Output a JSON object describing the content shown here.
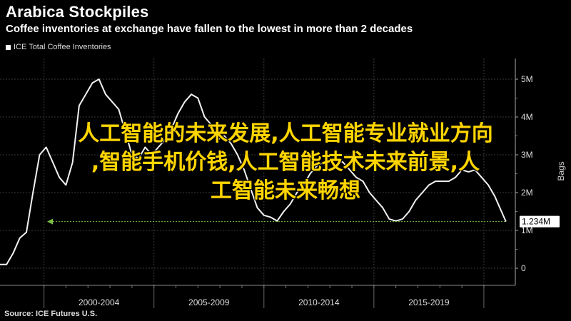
{
  "header": {
    "title": "Arabica Stockpiles",
    "subtitle": "Coffee inventories at exchange have fallen to the lowest in more than 2 decades"
  },
  "source": "Source: ICE Futures U.S.",
  "overlay": {
    "lines": [
      "人工智能的未来发展,人工智能专业就业方向",
      ",智能手机价钱,人工智能技术未来前景,人",
      "工智能未来畅想"
    ]
  },
  "chart_data": {
    "type": "line",
    "title": "Arabica Stockpiles",
    "subtitle": "Coffee inventories at exchange have fallen to the lowest in more than 2 decades",
    "ylabel": "Bags",
    "legend": "top-left",
    "grid": true,
    "ylim": [
      0,
      5.3
    ],
    "xlim": [
      1998.0,
      2021.3
    ],
    "y_ticks": [
      0,
      1,
      2,
      3,
      4,
      5
    ],
    "y_tick_labels": [
      "0",
      "1M",
      "2M",
      "3M",
      "4M",
      "5M"
    ],
    "x_periods": [
      {
        "label": "2000-2004",
        "start": 2000,
        "end": 2005
      },
      {
        "label": "2005-2009",
        "start": 2005,
        "end": 2010
      },
      {
        "label": "2010-2014",
        "start": 2010,
        "end": 2015
      },
      {
        "label": "2015-2019",
        "start": 2015,
        "end": 2020
      }
    ],
    "last_value_label": "1.234M",
    "last_value": 1.234,
    "series": [
      {
        "name": "ICE Total Coffee Inventories",
        "x": [
          1998.0,
          1998.3,
          1998.6,
          1998.9,
          1999.2,
          1999.5,
          1999.8,
          2000.1,
          2000.4,
          2000.7,
          2001.0,
          2001.3,
          2001.6,
          2001.9,
          2002.2,
          2002.5,
          2002.8,
          2003.1,
          2003.4,
          2003.7,
          2004.0,
          2004.3,
          2004.6,
          2004.9,
          2005.2,
          2005.5,
          2005.8,
          2006.1,
          2006.4,
          2006.7,
          2007.0,
          2007.3,
          2007.6,
          2007.9,
          2008.2,
          2008.5,
          2008.8,
          2009.1,
          2009.4,
          2009.7,
          2010.0,
          2010.3,
          2010.6,
          2010.9,
          2011.2,
          2011.5,
          2011.8,
          2012.1,
          2012.4,
          2012.7,
          2013.0,
          2013.3,
          2013.6,
          2013.9,
          2014.2,
          2014.5,
          2014.8,
          2015.1,
          2015.4,
          2015.7,
          2016.0,
          2016.3,
          2016.6,
          2016.9,
          2017.2,
          2017.5,
          2017.8,
          2018.1,
          2018.4,
          2018.7,
          2019.0,
          2019.3,
          2019.6,
          2019.9,
          2020.2,
          2020.5,
          2020.8,
          2021.0
        ],
        "values": [
          0.1,
          0.1,
          0.4,
          0.8,
          0.95,
          2.0,
          3.0,
          3.2,
          2.8,
          2.4,
          2.2,
          2.8,
          4.3,
          4.6,
          4.9,
          5.0,
          4.6,
          4.4,
          4.2,
          3.6,
          3.0,
          2.9,
          3.2,
          3.0,
          3.2,
          3.4,
          3.7,
          4.1,
          4.4,
          4.6,
          4.5,
          4.0,
          3.8,
          3.4,
          3.5,
          3.3,
          3.0,
          2.6,
          2.1,
          1.6,
          1.4,
          1.35,
          1.25,
          1.5,
          1.7,
          2.0,
          2.2,
          2.5,
          2.7,
          2.8,
          2.8,
          2.9,
          2.8,
          2.6,
          2.4,
          2.3,
          2.0,
          1.8,
          1.6,
          1.3,
          1.25,
          1.3,
          1.5,
          1.8,
          2.0,
          2.2,
          2.3,
          2.3,
          2.3,
          2.4,
          2.6,
          2.55,
          2.6,
          2.4,
          2.2,
          1.9,
          1.5,
          1.234
        ]
      }
    ]
  }
}
